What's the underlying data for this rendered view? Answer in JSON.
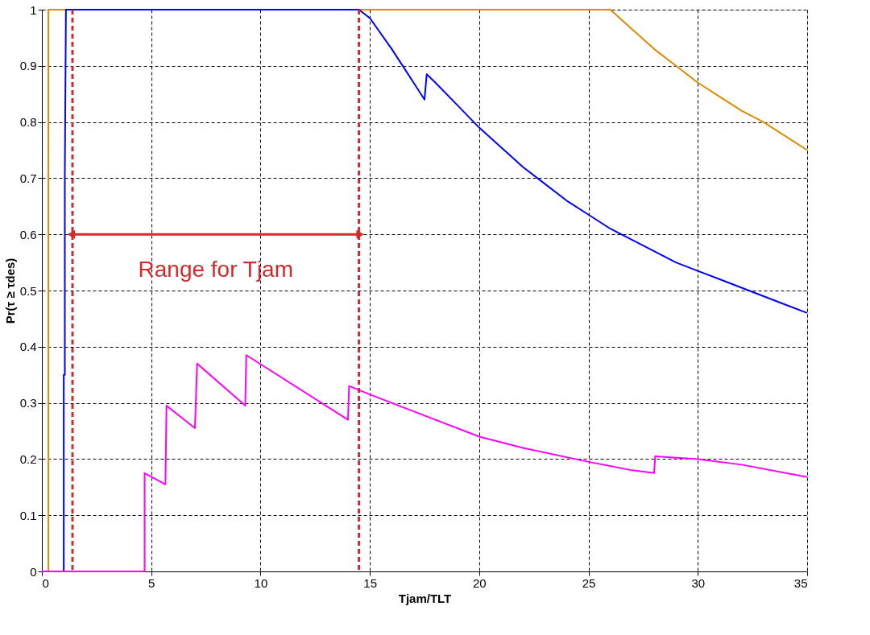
{
  "chart_data": {
    "type": "line",
    "xlabel": "Tjam/TLT",
    "ylabel": "Pr(τ ≥ τdes)",
    "xlim": [
      0,
      35
    ],
    "ylim": [
      0,
      1
    ],
    "xticks": [
      0,
      5,
      10,
      15,
      20,
      25,
      30,
      35
    ],
    "yticks": [
      0,
      0.1,
      0.2,
      0.3,
      0.4,
      0.5,
      0.6,
      0.7,
      0.8,
      0.9,
      1
    ],
    "grid": true,
    "legend": false,
    "line_style": "solid",
    "marker": "none",
    "series": [
      {
        "color": "#e08a00",
        "x": [
          0,
          0.3,
          0.3,
          26,
          27,
          28,
          29,
          30,
          31,
          32,
          33,
          34,
          35
        ],
        "values": [
          0,
          0,
          1,
          1,
          0.965,
          0.93,
          0.9,
          0.87,
          0.845,
          0.82,
          0.8,
          0.775,
          0.75
        ]
      },
      {
        "color": "#0000ff",
        "x": [
          0,
          1.0,
          1.0,
          1.05,
          1.05,
          1.1,
          14.5,
          15,
          16,
          17,
          17.5,
          17.6,
          18,
          19,
          20,
          21,
          22,
          23,
          24,
          25,
          26,
          27,
          28,
          29,
          30,
          31,
          32,
          33,
          34,
          35
        ],
        "values": [
          0,
          0,
          0.35,
          0.35,
          0.71,
          1,
          1,
          0.985,
          0.93,
          0.87,
          0.84,
          0.885,
          0.87,
          0.83,
          0.79,
          0.755,
          0.72,
          0.69,
          0.66,
          0.635,
          0.61,
          0.59,
          0.57,
          0.55,
          0.535,
          0.52,
          0.505,
          0.49,
          0.475,
          0.46
        ]
      },
      {
        "color": "#ff00ff",
        "x": [
          0,
          4.7,
          4.7,
          5.65,
          5.7,
          7.0,
          7.1,
          9.3,
          9.35,
          14.0,
          14.05,
          15,
          17,
          20,
          22,
          25,
          27,
          28,
          28.05,
          30,
          32,
          35
        ],
        "values": [
          0,
          0,
          0.175,
          0.155,
          0.295,
          0.255,
          0.37,
          0.295,
          0.385,
          0.27,
          0.33,
          0.315,
          0.285,
          0.24,
          0.22,
          0.195,
          0.18,
          0.175,
          0.205,
          0.2,
          0.19,
          0.168
        ]
      }
    ],
    "ref_lines": [
      {
        "axis": "x",
        "value": 1.4,
        "label": null,
        "color": "#d42a2a",
        "line_style": "dashed"
      },
      {
        "axis": "x",
        "value": 14.5,
        "label": null,
        "color": "#d42a2a",
        "line_style": "dashed"
      }
    ],
    "annotations": [
      "Range for Tjam"
    ]
  }
}
